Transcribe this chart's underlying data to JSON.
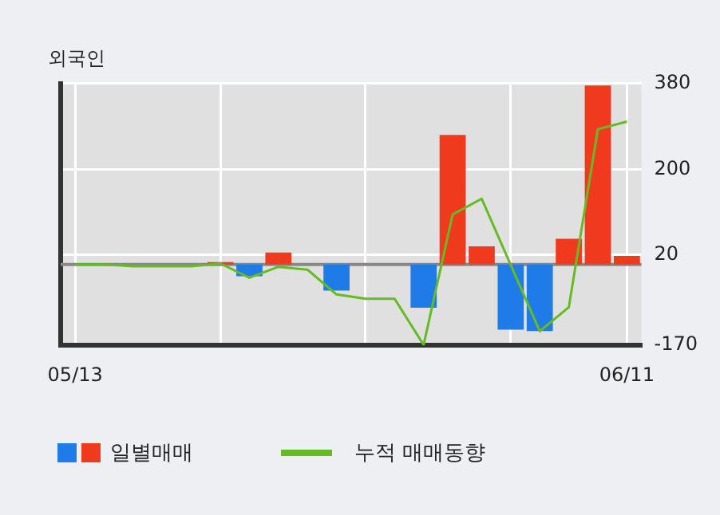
{
  "chart_data": {
    "type": "bar",
    "title": "외국인",
    "categories": [
      "05/13",
      null,
      null,
      null,
      null,
      null,
      null,
      null,
      null,
      null,
      null,
      null,
      null,
      null,
      null,
      null,
      null,
      null,
      null,
      "06/11"
    ],
    "series": [
      {
        "name": "일별매매",
        "axis": "y2",
        "colors": [
          "#f03a1e",
          "#f03a1e",
          "#f03a1e",
          "#f03a1e",
          "#f03a1e",
          "#f03a1e",
          "#1e7be8",
          "#f03a1e",
          "#f03a1e",
          "#1e7be8",
          "#f03a1e",
          "#f03a1e",
          "#1e7be8",
          "#f03a1e",
          "#f03a1e",
          "#1e7be8",
          "#1e7be8",
          "#f03a1e",
          "#f03a1e",
          "#f03a1e"
        ],
        "values": [
          0,
          0,
          0,
          0,
          0,
          5,
          -25,
          25,
          0,
          -55,
          0,
          0,
          -91,
          272,
          38,
          -137,
          -140,
          54,
          376,
          18
        ]
      },
      {
        "name": "누적 매매동향",
        "type": "line",
        "axis": "y2",
        "color": "#66bb22",
        "values": [
          0,
          0,
          -4,
          -4,
          -4,
          2,
          -28,
          -5,
          -11,
          -63,
          -72,
          -72,
          -169,
          105,
          138,
          -1,
          -140,
          -90,
          284,
          300
        ]
      }
    ],
    "y2lim": [
      -170,
      380
    ],
    "y2ticks": [
      -170,
      20,
      200,
      380
    ],
    "ref_lines": [
      {
        "axis": "y2",
        "value": 0,
        "color": "#888888"
      }
    ],
    "grid": true,
    "legend": "bottom",
    "marker": "none",
    "line_style": "solid"
  }
}
